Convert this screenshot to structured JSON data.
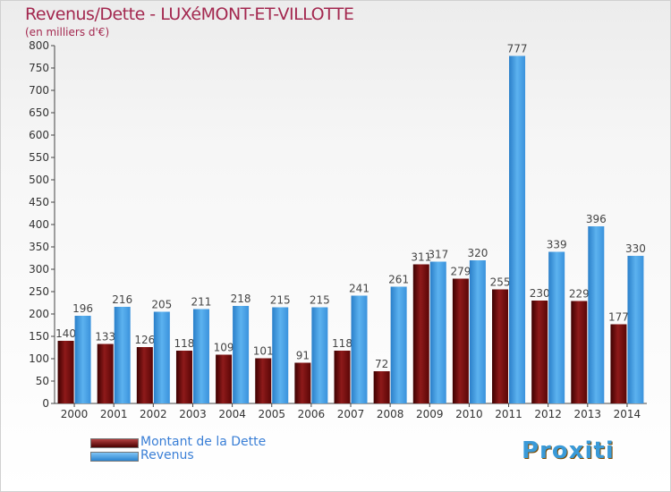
{
  "chart_data": {
    "type": "bar",
    "title": "Revenus/Dette - LUXéMONT-ET-VILLOTTE",
    "subtitle": "(en milliers d'€)",
    "categories": [
      "2000",
      "2001",
      "2002",
      "2003",
      "2004",
      "2005",
      "2006",
      "2007",
      "2008",
      "2009",
      "2010",
      "2011",
      "2012",
      "2013",
      "2014"
    ],
    "series": [
      {
        "name": "Montant de la Dette",
        "color": "#7a0f12",
        "values": [
          140,
          133,
          126,
          118,
          109,
          101,
          91,
          118,
          72,
          311,
          279,
          255,
          230,
          229,
          177
        ]
      },
      {
        "name": "Revenus",
        "color": "#3f9be3",
        "values": [
          196,
          216,
          205,
          211,
          218,
          215,
          215,
          241,
          261,
          317,
          320,
          777,
          339,
          396,
          330
        ]
      }
    ],
    "y_ticks": [
      "0",
      "50",
      "100",
      "150",
      "200",
      "250",
      "300",
      "350",
      "400",
      "450",
      "500",
      "550",
      "600",
      "650",
      "700",
      "750",
      "800"
    ],
    "ylim": [
      0,
      800
    ],
    "grid": false,
    "legend_position": "bottom-left"
  },
  "branding": {
    "logo_text": "Proxiti"
  }
}
